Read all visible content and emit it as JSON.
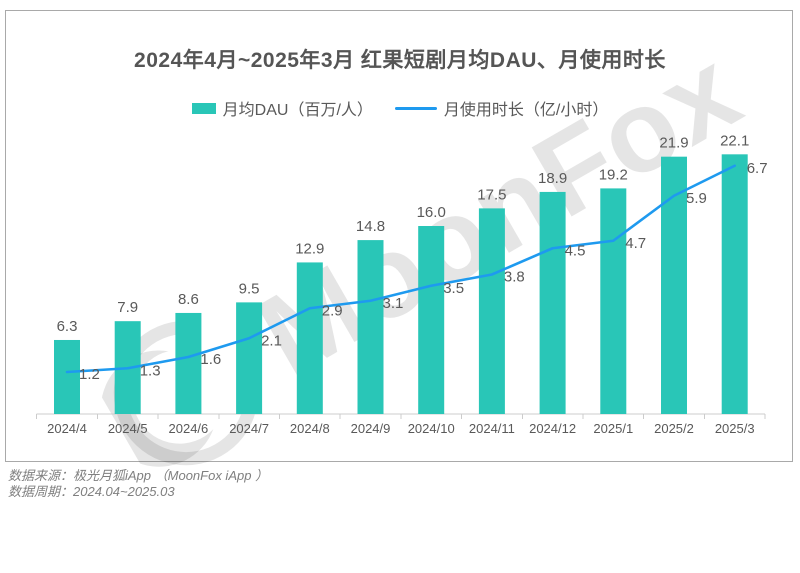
{
  "title": "2024年4月~2025年3月 红果短剧月均DAU、月使用时长",
  "legend": {
    "dau": "月均DAU（百万/人）",
    "duration": "月使用时长（亿/小时）"
  },
  "watermark": {
    "text": "MoonFox"
  },
  "footer": {
    "source": "数据来源：极光月狐iApp （MoonFox iApp ）",
    "period": "数据周期：2024.04~2025.03"
  },
  "colors": {
    "bar": "#29C6B7",
    "line": "#1E9AEF",
    "value_text": "#595959",
    "axis": "#CCCCCC",
    "title_text": "#555555",
    "footer_text": "#7F7F7F",
    "frame_border": "#A9A9A9"
  },
  "chart_data": {
    "type": "bar",
    "subtype": "bar-line-combo",
    "title": "2024年4月~2025年3月 红果短剧月均DAU、月使用时长",
    "categories": [
      "2024/4",
      "2024/5",
      "2024/6",
      "2024/7",
      "2024/8",
      "2024/9",
      "2024/10",
      "2024/11",
      "2024/12",
      "2025/1",
      "2025/2",
      "2025/3"
    ],
    "series": [
      {
        "name": "月均DAU（百万/人）",
        "type": "bar",
        "color": "#29C6B7",
        "values": [
          6.3,
          7.9,
          8.6,
          9.5,
          12.9,
          14.8,
          16.0,
          17.5,
          18.9,
          19.2,
          21.9,
          22.1
        ]
      },
      {
        "name": "月使用时长（亿/小时）",
        "type": "line",
        "color": "#1E9AEF",
        "values": [
          1.2,
          1.3,
          1.6,
          2.1,
          2.9,
          3.1,
          3.5,
          3.8,
          4.5,
          4.7,
          5.9,
          6.7
        ]
      }
    ],
    "value_labels": true,
    "grid": false,
    "legend_position": "top",
    "xlabel": "",
    "ylabel": "",
    "axes_visible": {
      "x": true,
      "y": false
    }
  }
}
